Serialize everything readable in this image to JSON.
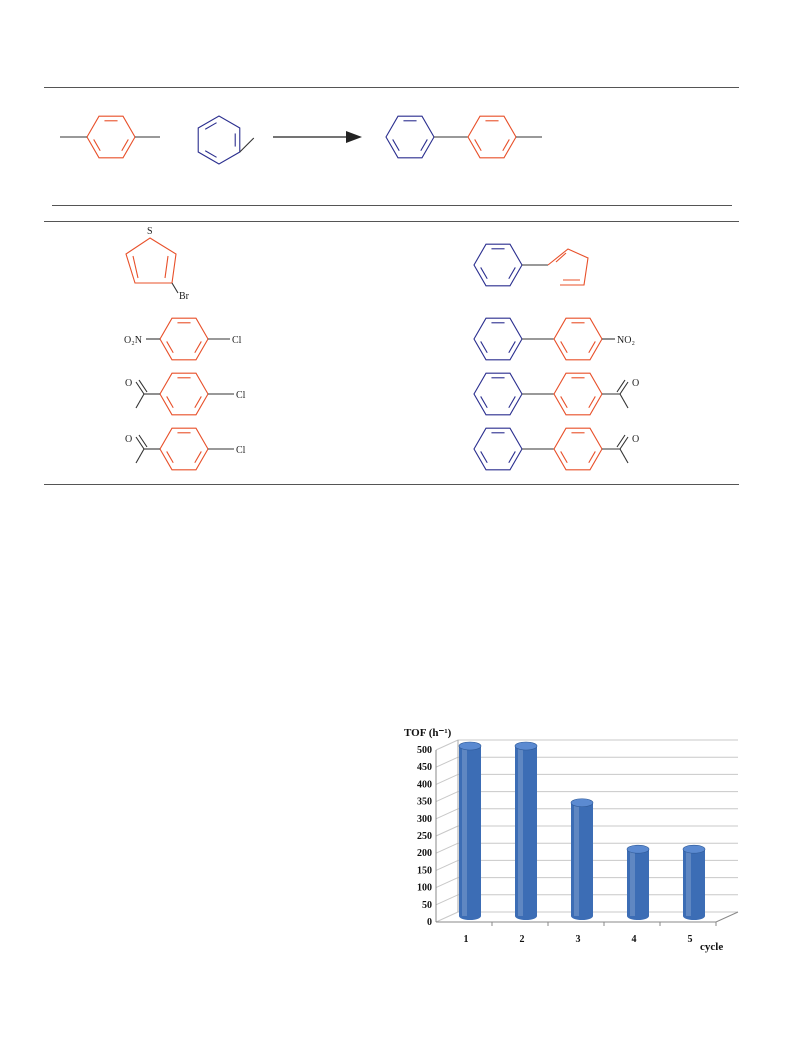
{
  "scheme": {
    "rows": [
      {
        "reactant_labels": [
          "S",
          "Br"
        ]
      },
      {
        "reactant_labels": [
          "O₂N",
          "Cl"
        ],
        "product_labels": [
          "NO₂"
        ]
      },
      {
        "reactant_labels": [
          "O",
          "Cl"
        ],
        "product_labels": [
          "O"
        ]
      },
      {
        "reactant_labels": [
          "O",
          "Cl"
        ],
        "product_labels": [
          "O"
        ]
      }
    ]
  },
  "colors": {
    "orange_ring": "#e8502a",
    "blue_ring": "#2b2f8f",
    "bond": "#333333",
    "bar_fill": "#3c6db5",
    "bar_top": "#5b8ad1"
  },
  "chart_data": {
    "type": "bar",
    "categories": [
      "1",
      "2",
      "3",
      "4",
      "5"
    ],
    "values": [
      500,
      500,
      335,
      200,
      200
    ],
    "ylabel": "TOF (h⁻¹)",
    "xlabel": "cycle",
    "ylim": [
      0,
      500
    ],
    "yticks": [
      0,
      50,
      100,
      150,
      200,
      250,
      300,
      350,
      400,
      450,
      500
    ],
    "grid": true
  }
}
